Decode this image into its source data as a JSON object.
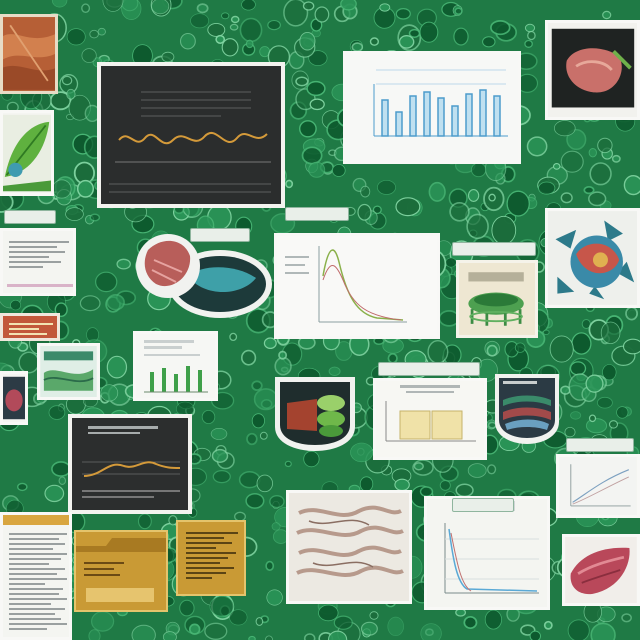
{
  "colors": {
    "background_green": "#1f7a45",
    "cell_light": "#48b574",
    "cell_dark": "#0d5a2e",
    "card_white": "#f4f5f1",
    "card_dark": "#2a2c2c",
    "chart_blue": "#5aa9d6",
    "chart_orange": "#d49a3a",
    "tissue_pink": "#c9706a",
    "folder_gold": "#c99a35"
  },
  "cards": [
    {
      "name": "tissue-photo-top-left",
      "kind": "image"
    },
    {
      "name": "leaf-illustration",
      "kind": "image"
    },
    {
      "name": "waveform-monitor",
      "kind": "chart"
    },
    {
      "name": "blue-bar-chart",
      "kind": "chart"
    },
    {
      "name": "tissue-sample-dark",
      "kind": "image"
    },
    {
      "name": "small-text-card-left",
      "kind": "document"
    },
    {
      "name": "organ-diagram-round",
      "kind": "diagram"
    },
    {
      "name": "decay-curve-chart",
      "kind": "chart"
    },
    {
      "name": "green-structure-diagram",
      "kind": "diagram"
    },
    {
      "name": "cell-diagram-right",
      "kind": "diagram"
    },
    {
      "name": "small-red-card",
      "kind": "image"
    },
    {
      "name": "landscape-thumbnail",
      "kind": "image"
    },
    {
      "name": "green-bar-card",
      "kind": "chart"
    },
    {
      "name": "tissue-thumbnail-left",
      "kind": "image"
    },
    {
      "name": "layered-tissue-badge",
      "kind": "diagram"
    },
    {
      "name": "yellow-blocks-chart",
      "kind": "chart"
    },
    {
      "name": "stacked-layers-badge",
      "kind": "diagram"
    },
    {
      "name": "dark-signal-monitor",
      "kind": "chart"
    },
    {
      "name": "text-page-bottom-left",
      "kind": "document"
    },
    {
      "name": "gold-folder",
      "kind": "document"
    },
    {
      "name": "gold-card",
      "kind": "document"
    },
    {
      "name": "fiber-tissue-photo",
      "kind": "image"
    },
    {
      "name": "falling-line-chart",
      "kind": "chart"
    },
    {
      "name": "small-line-chart-right",
      "kind": "chart"
    },
    {
      "name": "red-tissue-photo-bottom-right",
      "kind": "image"
    }
  ]
}
